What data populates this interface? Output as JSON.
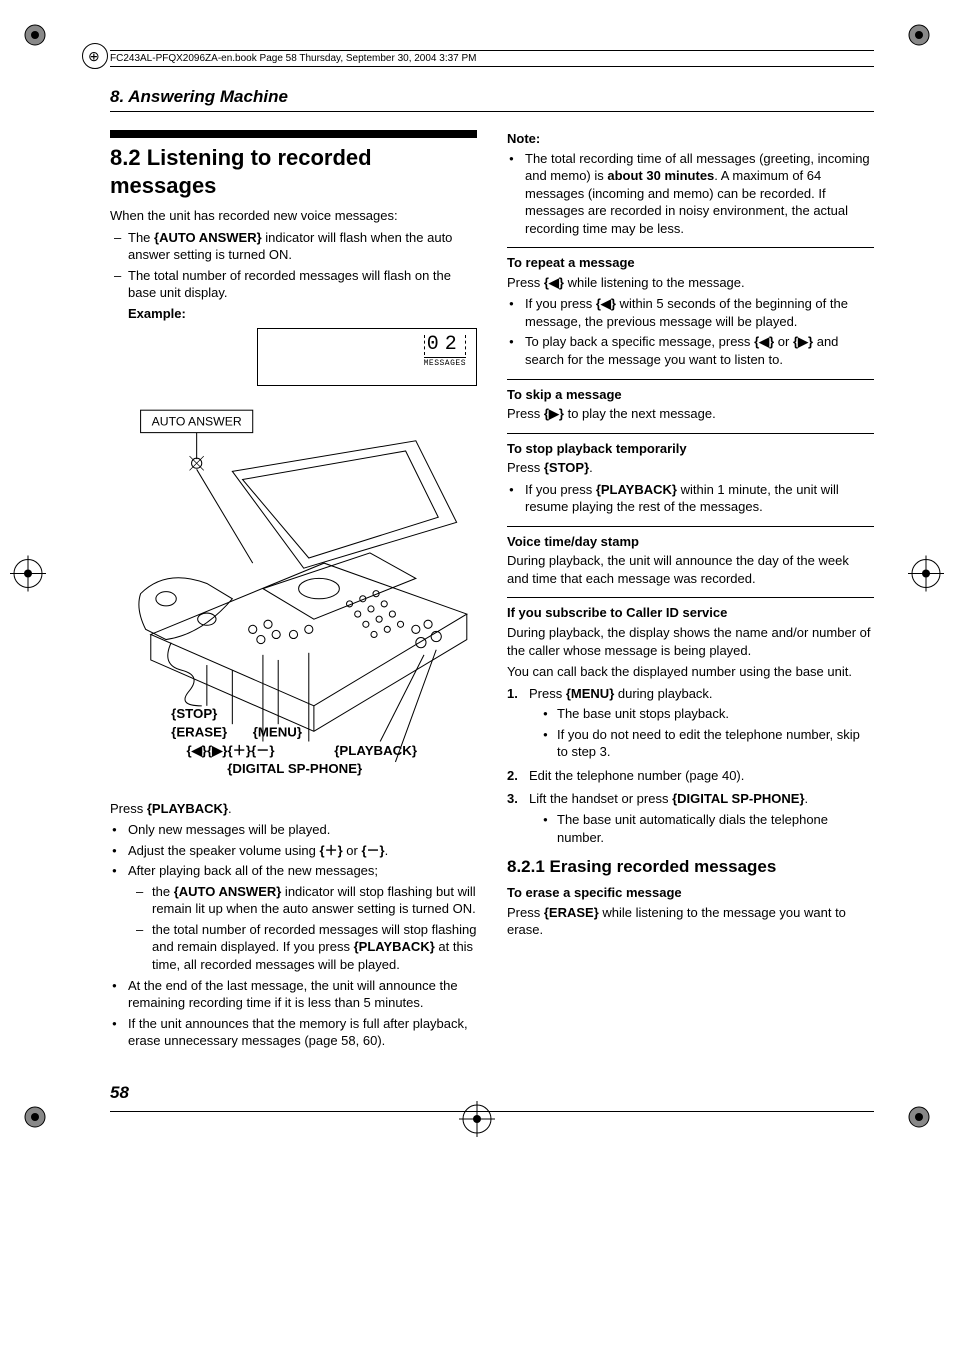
{
  "header": {
    "runner": "FC243AL-PFQX2096ZA-en.book  Page 58  Thursday, September 30, 2004  3:37 PM"
  },
  "chapter": "8. Answering Machine",
  "section": {
    "number_title": "8.2 Listening to recorded messages",
    "intro1": "When the unit has recorded new voice messages:",
    "dash1": "The {AUTO ANSWER} indicator will flash when the auto answer setting is turned ON.",
    "dash2": "The total number of recorded messages will flash on the base unit display.",
    "example_label": "Example:"
  },
  "display": {
    "digits": "02",
    "label": "MESSAGES"
  },
  "figure": {
    "auto_answer": "AUTO ANSWER",
    "stop": "{STOP}",
    "erase": "{ERASE}",
    "menu": "{MENU}",
    "arrows": "{◀}{▶}{＋}{－}",
    "playback": "{PLAYBACK}",
    "sp_phone": "{DIGITAL SP-PHONE}"
  },
  "left_body": {
    "press_playback": "Press {PLAYBACK}.",
    "b1": "Only new messages will be played.",
    "b2": "Adjust the speaker volume using {＋} or {－}.",
    "b3": "After playing back all of the new messages;",
    "b3d1": "the {AUTO ANSWER} indicator will stop flashing but will remain lit up when the auto answer setting is turned ON.",
    "b3d2": "the total number of recorded messages will stop flashing and remain displayed. If you press {PLAYBACK} at this time, all recorded messages will be played.",
    "b4": "At the end of the last message, the unit will announce the remaining recording time if it is less than 5 minutes.",
    "b5": "If the unit announces that the memory is full after playback, erase unnecessary messages (page 58, 60)."
  },
  "right_body": {
    "note_label": "Note:",
    "note1a": "The total recording time of all messages (greeting, incoming and memo) is ",
    "note1b": "about 30 minutes",
    "note1c": ". A maximum of 64 messages (incoming and memo) can be recorded. If messages are recorded in noisy environment, the actual recording time may be less.",
    "repeat_h": "To repeat a message",
    "repeat_p": "Press {◀} while listening to the message.",
    "repeat_b1": "If you press {◀} within 5 seconds of the beginning of the message, the previous message will be played.",
    "repeat_b2": "To play back a specific message, press {◀} or {▶} and search for the message you want to listen to.",
    "skip_h": "To skip a message",
    "skip_p": "Press {▶} to play the next message.",
    "stop_h": "To stop playback temporarily",
    "stop_p": "Press {STOP}.",
    "stop_b1": "If you press {PLAYBACK} within 1 minute, the unit will resume playing the rest of the messages.",
    "stamp_h": "Voice time/day stamp",
    "stamp_p": "During playback, the unit will announce the day of the week and time that each message was recorded.",
    "cid_h": "If you subscribe to Caller ID service",
    "cid_p1": "During playback, the display shows the name and/or number of the caller whose message is being played.",
    "cid_p2": "You can call back the displayed number using the base unit.",
    "cid_s1": "Press {MENU} during playback.",
    "cid_s1b1": "The base unit stops playback.",
    "cid_s1b2": "If you do not need to edit the telephone number, skip to step 3.",
    "cid_s2": "Edit the telephone number (page 40).",
    "cid_s3a": "Lift the handset or press ",
    "cid_s3b": "{DIGITAL SP-PHONE}",
    "cid_s3c": ".",
    "cid_s3b1": "The base unit automatically dials the telephone number.",
    "erase_title": "8.2.1 Erasing recorded messages",
    "erase_h": "To erase a specific message",
    "erase_p": "Press {ERASE} while listening to the message you want to erase."
  },
  "page_number": "58"
}
